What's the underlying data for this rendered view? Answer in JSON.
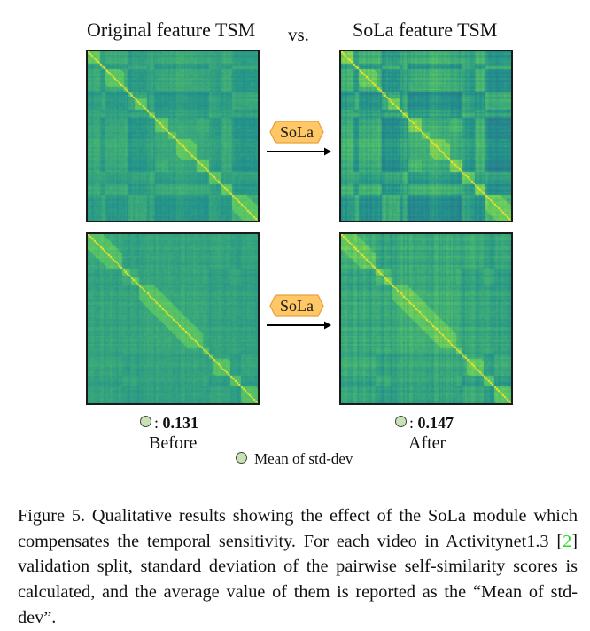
{
  "figure": {
    "titles": {
      "left": "Original feature TSM",
      "vs": "vs.",
      "right": "SoLa feature TSM"
    },
    "step_badge_label": "SoLa",
    "colors": {
      "badge_fill": "#ffc766",
      "badge_border": "#e5a13a",
      "score_dot": "#c9e2b3",
      "citation": "#22dd22",
      "colormap": "viridis"
    },
    "panels": [
      {
        "row": "top",
        "side": "before",
        "description": "Original feature TSM, video 1"
      },
      {
        "row": "top",
        "side": "after",
        "description": "SoLa feature TSM, video 1"
      },
      {
        "row": "bottom",
        "side": "before",
        "description": "Original feature TSM, video 2"
      },
      {
        "row": "bottom",
        "side": "after",
        "description": "SoLa feature TSM, video 2"
      }
    ],
    "scores": {
      "separator": ": ",
      "before": {
        "value": "0.131",
        "label": "Before"
      },
      "after": {
        "value": "0.147",
        "label": "After"
      }
    },
    "legend": {
      "label": "Mean of std-dev"
    }
  },
  "caption": {
    "prefix": "Figure 5. Qualitative results showing the effect of the SoLa module which compensates the temporal sensitivity. For each video in Activitynet1.3 [",
    "citation": "2",
    "suffix": "] validation split, standard deviation of the pairwise self-similarity scores is calculated, and the average value of them is reported as the “Mean of std-dev”."
  }
}
